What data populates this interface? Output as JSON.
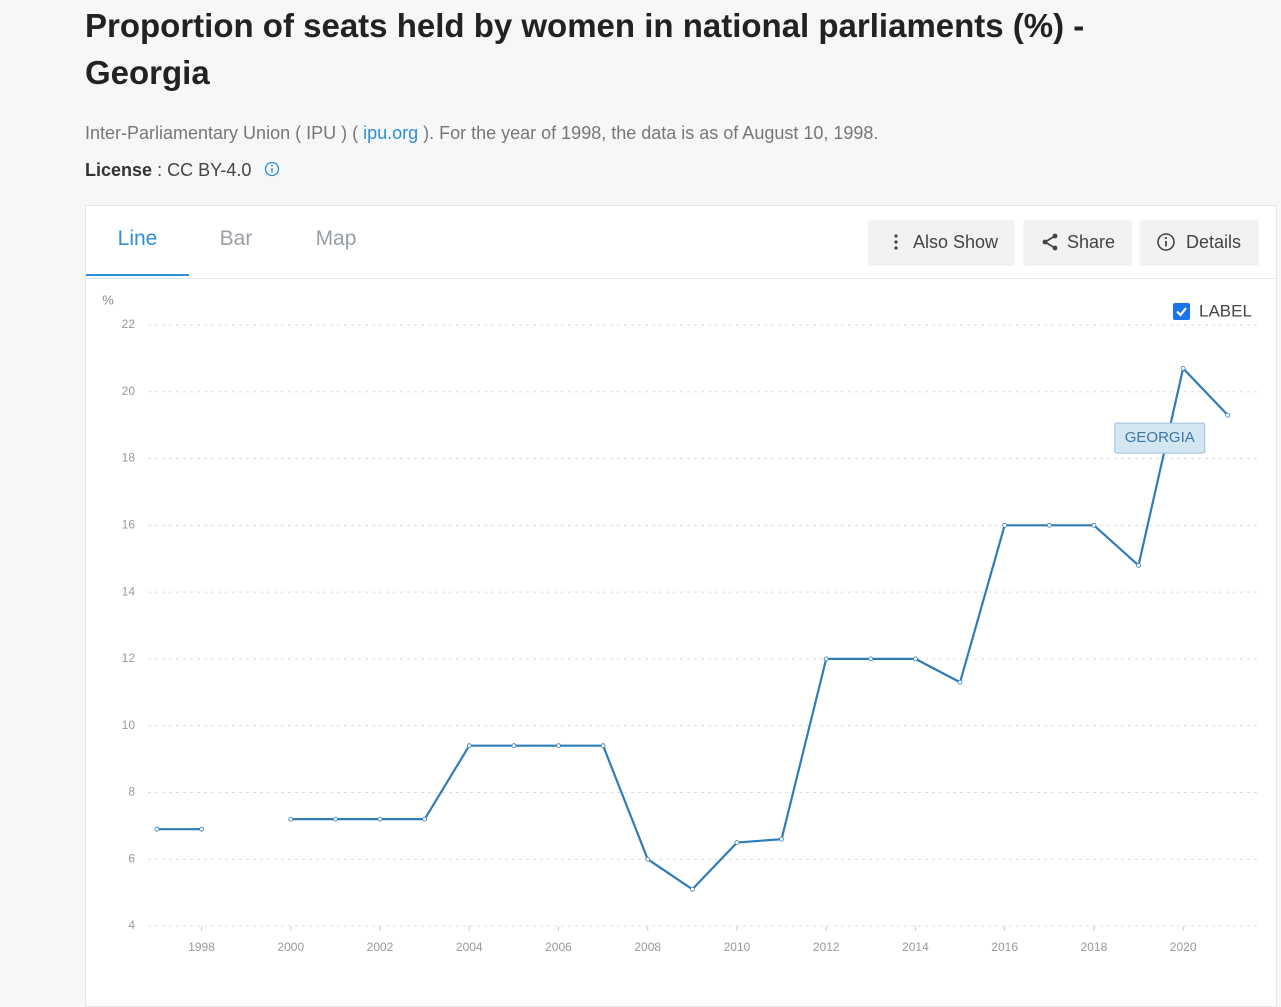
{
  "header": {
    "title": "Proportion of seats held by women in national parliaments (%) - Georgia",
    "source": {
      "prefix": "Inter-Parliamentary Union ( IPU ) ( ",
      "link": "ipu.org",
      "suffix": " ). For the year of 1998, the data is as of August 10, 1998."
    },
    "license": {
      "label": "License",
      "value": ": CC BY-4.0"
    }
  },
  "tabs": [
    "Line",
    "Bar",
    "Map"
  ],
  "buttons": [
    "Also Show",
    "Share",
    "Details"
  ],
  "label_toggle": "LABEL",
  "chart_data": {
    "type": "line",
    "y_label": "%",
    "x": [
      1997,
      1998,
      1999,
      2000,
      2001,
      2002,
      2003,
      2004,
      2005,
      2006,
      2007,
      2008,
      2009,
      2010,
      2011,
      2012,
      2013,
      2014,
      2015,
      2016,
      2017,
      2018,
      2019,
      2020,
      2021
    ],
    "series": [
      {
        "name": "GEORGIA",
        "color": "#2f7cb8",
        "values": [
          6.9,
          6.9,
          null,
          7.2,
          7.2,
          7.2,
          7.2,
          9.4,
          9.4,
          9.4,
          9.4,
          6.0,
          5.1,
          6.5,
          6.6,
          12.0,
          12.0,
          12.0,
          11.3,
          16.0,
          16.0,
          16.0,
          14.8,
          20.7,
          19.3
        ]
      }
    ],
    "xlim": [
      1996.8,
      2021.7
    ],
    "xticks": [
      1998,
      2000,
      2002,
      2004,
      2006,
      2008,
      2010,
      2012,
      2014,
      2016,
      2018,
      2020
    ],
    "ylim": [
      4,
      22
    ],
    "yticks": [
      4,
      6,
      8,
      10,
      12,
      14,
      16,
      18,
      20,
      22
    ],
    "grid": true
  }
}
